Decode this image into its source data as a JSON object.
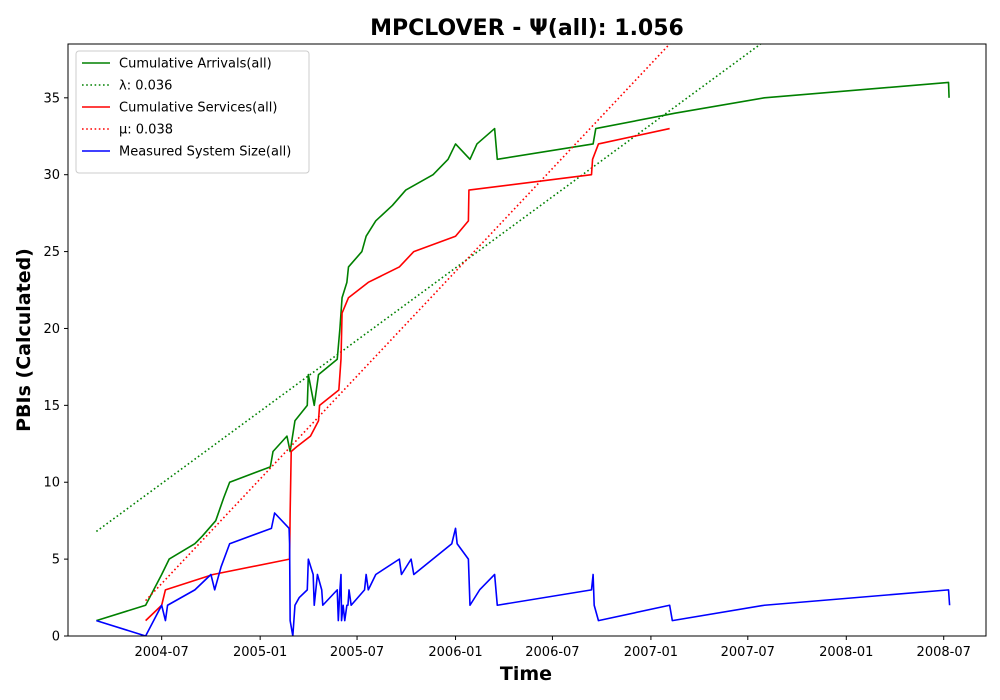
{
  "chart_data": {
    "type": "line",
    "title": "MPCLOVER -  Ψ(all): 1.056",
    "xlabel": "Time",
    "ylabel": "PBIs (Calculated)",
    "xlim": [
      "2004-01-08",
      "2008-09-18"
    ],
    "ylim": [
      0,
      38.5
    ],
    "x_ticks": [
      "2004-07",
      "2005-01",
      "2005-07",
      "2006-01",
      "2006-07",
      "2007-01",
      "2007-07",
      "2008-01",
      "2008-07"
    ],
    "y_ticks": [
      0,
      5,
      10,
      15,
      20,
      25,
      30,
      35
    ],
    "grid": false,
    "legend_position": "upper-left",
    "series": [
      {
        "name": "Cumulative Arrivals(all)",
        "color": "#008000",
        "style": "solid",
        "points": [
          [
            "2004-03-01",
            1
          ],
          [
            "2004-06-01",
            2
          ],
          [
            "2004-07-01",
            4
          ],
          [
            "2004-07-15",
            5
          ],
          [
            "2004-09-01",
            6
          ],
          [
            "2004-09-15",
            6.5
          ],
          [
            "2004-10-10",
            7.5
          ],
          [
            "2004-10-25",
            9
          ],
          [
            "2004-11-05",
            10
          ],
          [
            "2005-01-20",
            11
          ],
          [
            "2005-01-25",
            12
          ],
          [
            "2005-02-20",
            13
          ],
          [
            "2005-02-26",
            12
          ],
          [
            "2005-03-07",
            14
          ],
          [
            "2005-03-30",
            15
          ],
          [
            "2005-04-01",
            17
          ],
          [
            "2005-04-12",
            15
          ],
          [
            "2005-04-20",
            17
          ],
          [
            "2005-05-25",
            18
          ],
          [
            "2005-05-30",
            20
          ],
          [
            "2005-06-03",
            22
          ],
          [
            "2005-06-12",
            23
          ],
          [
            "2005-06-15",
            24
          ],
          [
            "2005-07-10",
            25
          ],
          [
            "2005-07-18",
            26
          ],
          [
            "2005-08-05",
            27
          ],
          [
            "2005-09-05",
            28
          ],
          [
            "2005-09-30",
            29
          ],
          [
            "2005-11-20",
            30
          ],
          [
            "2005-12-18",
            31
          ],
          [
            "2006-01-01",
            32
          ],
          [
            "2006-01-28",
            31
          ],
          [
            "2006-02-10",
            32
          ],
          [
            "2006-03-15",
            33
          ],
          [
            "2006-03-20",
            31
          ],
          [
            "2006-09-15",
            32
          ],
          [
            "2006-09-20",
            33
          ],
          [
            "2007-02-15",
            34
          ],
          [
            "2007-08-01",
            35
          ],
          [
            "2008-07-10",
            36
          ],
          [
            "2008-07-11",
            35
          ]
        ]
      },
      {
        "name": "λ: 0.036",
        "color": "#008000",
        "style": "dotted",
        "points": [
          [
            "2004-03-01",
            6.8
          ],
          [
            "2007-07-25",
            38.5
          ]
        ]
      },
      {
        "name": "Cumulative Services(all)",
        "color": "#ff0000",
        "style": "solid",
        "points": [
          [
            "2004-06-01",
            1
          ],
          [
            "2004-07-01",
            2
          ],
          [
            "2004-07-08",
            3
          ],
          [
            "2004-10-05",
            4
          ],
          [
            "2005-02-25",
            5
          ],
          [
            "2005-02-26",
            8
          ],
          [
            "2005-02-28",
            12
          ],
          [
            "2005-03-10",
            12.3
          ],
          [
            "2005-04-05",
            13
          ],
          [
            "2005-04-20",
            14
          ],
          [
            "2005-04-22",
            15
          ],
          [
            "2005-05-28",
            16
          ],
          [
            "2005-06-01",
            18
          ],
          [
            "2005-06-03",
            21
          ],
          [
            "2005-06-15",
            22
          ],
          [
            "2005-07-22",
            23
          ],
          [
            "2005-09-18",
            24
          ],
          [
            "2005-10-15",
            25
          ],
          [
            "2006-01-01",
            26
          ],
          [
            "2006-01-25",
            27
          ],
          [
            "2006-01-26",
            29
          ],
          [
            "2006-09-12",
            30
          ],
          [
            "2006-09-14",
            31
          ],
          [
            "2006-09-25",
            32
          ],
          [
            "2007-02-05",
            33
          ]
        ]
      },
      {
        "name": "μ: 0.038",
        "color": "#ff0000",
        "style": "dotted",
        "points": [
          [
            "2004-06-01",
            2.3
          ],
          [
            "2007-02-05",
            38.5
          ]
        ]
      },
      {
        "name": "Measured System Size(all)",
        "color": "#0000ff",
        "style": "solid",
        "points": [
          [
            "2004-03-01",
            1
          ],
          [
            "2004-06-01",
            0
          ],
          [
            "2004-07-01",
            2
          ],
          [
            "2004-07-08",
            1
          ],
          [
            "2004-07-12",
            2
          ],
          [
            "2004-09-01",
            3
          ],
          [
            "2004-10-01",
            4
          ],
          [
            "2004-10-08",
            3
          ],
          [
            "2004-10-20",
            4.5
          ],
          [
            "2004-11-05",
            6
          ],
          [
            "2005-01-22",
            7
          ],
          [
            "2005-01-28",
            8
          ],
          [
            "2005-02-24",
            7
          ],
          [
            "2005-02-25",
            6
          ],
          [
            "2005-02-26",
            1
          ],
          [
            "2005-03-03",
            0
          ],
          [
            "2005-03-07",
            2
          ],
          [
            "2005-03-15",
            2.5
          ],
          [
            "2005-03-30",
            3
          ],
          [
            "2005-04-01",
            5
          ],
          [
            "2005-04-10",
            4
          ],
          [
            "2005-04-12",
            2
          ],
          [
            "2005-04-18",
            4
          ],
          [
            "2005-04-26",
            3
          ],
          [
            "2005-04-28",
            2
          ],
          [
            "2005-05-25",
            3
          ],
          [
            "2005-05-27",
            1
          ],
          [
            "2005-05-30",
            3
          ],
          [
            "2005-06-01",
            4
          ],
          [
            "2005-06-02",
            1
          ],
          [
            "2005-06-05",
            2
          ],
          [
            "2005-06-08",
            1
          ],
          [
            "2005-06-12",
            2
          ],
          [
            "2005-06-14",
            2
          ],
          [
            "2005-06-16",
            3
          ],
          [
            "2005-06-20",
            2
          ],
          [
            "2005-07-15",
            3
          ],
          [
            "2005-07-18",
            4
          ],
          [
            "2005-07-22",
            3
          ],
          [
            "2005-08-05",
            4
          ],
          [
            "2005-09-18",
            5
          ],
          [
            "2005-09-22",
            4
          ],
          [
            "2005-10-10",
            5
          ],
          [
            "2005-10-15",
            4
          ],
          [
            "2005-12-25",
            6
          ],
          [
            "2006-01-01",
            7
          ],
          [
            "2006-01-04",
            6
          ],
          [
            "2006-01-25",
            5
          ],
          [
            "2006-01-28",
            2
          ],
          [
            "2006-02-15",
            3
          ],
          [
            "2006-03-15",
            4
          ],
          [
            "2006-03-20",
            2
          ],
          [
            "2006-09-12",
            3
          ],
          [
            "2006-09-15",
            4
          ],
          [
            "2006-09-17",
            2
          ],
          [
            "2006-09-25",
            1
          ],
          [
            "2007-02-05",
            2
          ],
          [
            "2007-02-10",
            1
          ],
          [
            "2007-08-01",
            2
          ],
          [
            "2008-07-10",
            3
          ],
          [
            "2008-07-12",
            2
          ]
        ]
      }
    ]
  }
}
